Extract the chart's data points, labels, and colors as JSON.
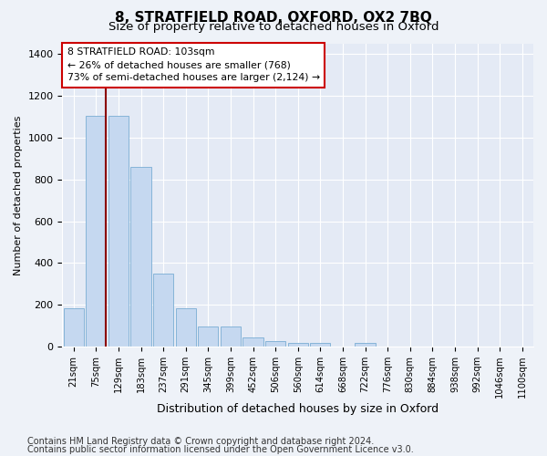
{
  "title1": "8, STRATFIELD ROAD, OXFORD, OX2 7BQ",
  "title2": "Size of property relative to detached houses in Oxford",
  "xlabel": "Distribution of detached houses by size in Oxford",
  "ylabel": "Number of detached properties",
  "footer1": "Contains HM Land Registry data © Crown copyright and database right 2024.",
  "footer2": "Contains public sector information licensed under the Open Government Licence v3.0.",
  "bar_labels": [
    "21sqm",
    "75sqm",
    "129sqm",
    "183sqm",
    "237sqm",
    "291sqm",
    "345sqm",
    "399sqm",
    "452sqm",
    "506sqm",
    "560sqm",
    "614sqm",
    "668sqm",
    "722sqm",
    "776sqm",
    "830sqm",
    "884sqm",
    "938sqm",
    "992sqm",
    "1046sqm",
    "1100sqm"
  ],
  "bar_values": [
    185,
    1105,
    1105,
    860,
    350,
    185,
    95,
    95,
    45,
    25,
    20,
    20,
    0,
    20,
    0,
    0,
    0,
    0,
    0,
    0,
    0
  ],
  "bar_color": "#c5d8f0",
  "bar_edge_color": "#7aadd4",
  "vline_color": "#8b0000",
  "annotation_text": "8 STRATFIELD ROAD: 103sqm\n← 26% of detached houses are smaller (768)\n73% of semi-detached houses are larger (2,124) →",
  "annotation_box_color": "#ffffff",
  "annotation_box_edge": "#cc0000",
  "ylim": [
    0,
    1450
  ],
  "yticks": [
    0,
    200,
    400,
    600,
    800,
    1000,
    1200,
    1400
  ],
  "bg_color": "#eef2f8",
  "plot_bg_color": "#e4eaf5",
  "title1_fontsize": 11,
  "title2_fontsize": 9.5,
  "xlabel_fontsize": 9,
  "ylabel_fontsize": 8,
  "footer_fontsize": 7
}
